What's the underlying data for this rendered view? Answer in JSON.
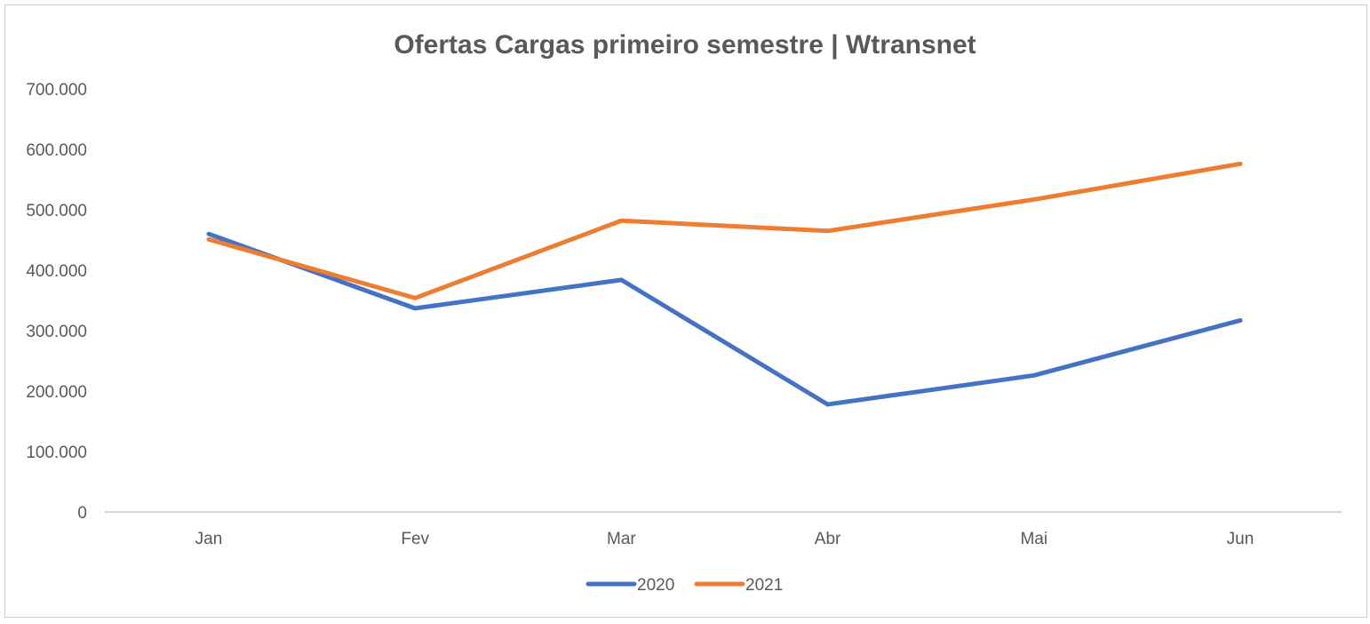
{
  "chart_data": {
    "type": "line",
    "title": "Ofertas Cargas primeiro semestre | Wtransnet",
    "xlabel": "",
    "ylabel": "",
    "categories": [
      "Jan",
      "Fev",
      "Mar",
      "Abr",
      "Mai",
      "Jun"
    ],
    "ylim": [
      0,
      700000
    ],
    "yticks": [
      0,
      100000,
      200000,
      300000,
      400000,
      500000,
      600000,
      700000
    ],
    "ytick_labels": [
      "0",
      "100.000",
      "200.000",
      "300.000",
      "400.000",
      "500.000",
      "600.000",
      "700.000"
    ],
    "grid": false,
    "legend_position": "bottom",
    "series": [
      {
        "name": "2020",
        "color": "#4472c4",
        "values": [
          460000,
          337000,
          384000,
          178000,
          226000,
          317000
        ]
      },
      {
        "name": "2021",
        "color": "#ed7d31",
        "values": [
          451000,
          354000,
          482000,
          465000,
          517000,
          576000
        ]
      }
    ]
  }
}
